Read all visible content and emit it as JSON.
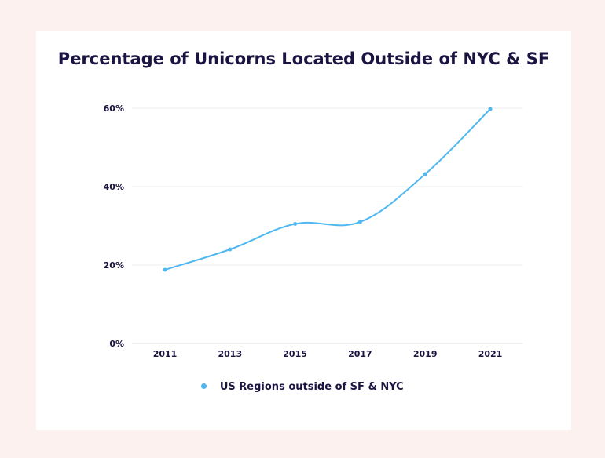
{
  "title": "Percentage of Unicorns Located Outside of NYC & SF",
  "colors": {
    "background": "#fcf1ee",
    "card": "#ffffff",
    "series": "#4fb8f0",
    "text": "#1b1440",
    "grid": "#ececec"
  },
  "chart_data": {
    "type": "line",
    "title": "Percentage of Unicorns Located Outside of NYC & SF",
    "xlabel": "",
    "ylabel": "",
    "categories": [
      "2011",
      "2013",
      "2015",
      "2017",
      "2019",
      "2021"
    ],
    "ylim": [
      0,
      60
    ],
    "yticks": [
      0,
      20,
      40,
      60
    ],
    "ytick_labels": [
      "0%",
      "20%",
      "40%",
      "60%"
    ],
    "grid": true,
    "smooth": true,
    "legend_position": "bottom",
    "series": [
      {
        "name": "US Regions outside of SF & NYC",
        "values": [
          18.8,
          24,
          30.5,
          31,
          43.2,
          59.8
        ]
      }
    ]
  }
}
